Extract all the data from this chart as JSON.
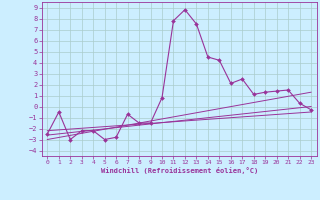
{
  "xlabel": "Windchill (Refroidissement éolien,°C)",
  "bg_color": "#cceeff",
  "grid_color": "#aacccc",
  "line_color": "#993399",
  "xlim": [
    -0.5,
    23.5
  ],
  "ylim": [
    -4.5,
    9.5
  ],
  "xticks": [
    0,
    1,
    2,
    3,
    4,
    5,
    6,
    7,
    8,
    9,
    10,
    11,
    12,
    13,
    14,
    15,
    16,
    17,
    18,
    19,
    20,
    21,
    22,
    23
  ],
  "yticks": [
    -4,
    -3,
    -2,
    -1,
    0,
    1,
    2,
    3,
    4,
    5,
    6,
    7,
    8,
    9
  ],
  "series1_x": [
    0,
    1,
    2,
    3,
    4,
    5,
    6,
    7,
    8,
    9,
    10,
    11,
    12,
    13,
    14,
    15,
    16,
    17,
    18,
    19,
    20,
    21,
    22,
    23
  ],
  "series1_y": [
    -2.5,
    -0.5,
    -3.0,
    -2.2,
    -2.2,
    -3.0,
    -2.8,
    -0.7,
    -1.5,
    -1.5,
    0.8,
    7.8,
    8.8,
    7.5,
    4.5,
    4.2,
    2.1,
    2.5,
    1.1,
    1.3,
    1.4,
    1.5,
    0.3,
    -0.3
  ],
  "trend1_x": [
    0,
    23
  ],
  "trend1_y": [
    -3.0,
    1.3
  ],
  "trend2_x": [
    0,
    23
  ],
  "trend2_y": [
    -2.6,
    0.0
  ],
  "trend3_x": [
    0,
    23
  ],
  "trend3_y": [
    -2.2,
    -0.5
  ]
}
